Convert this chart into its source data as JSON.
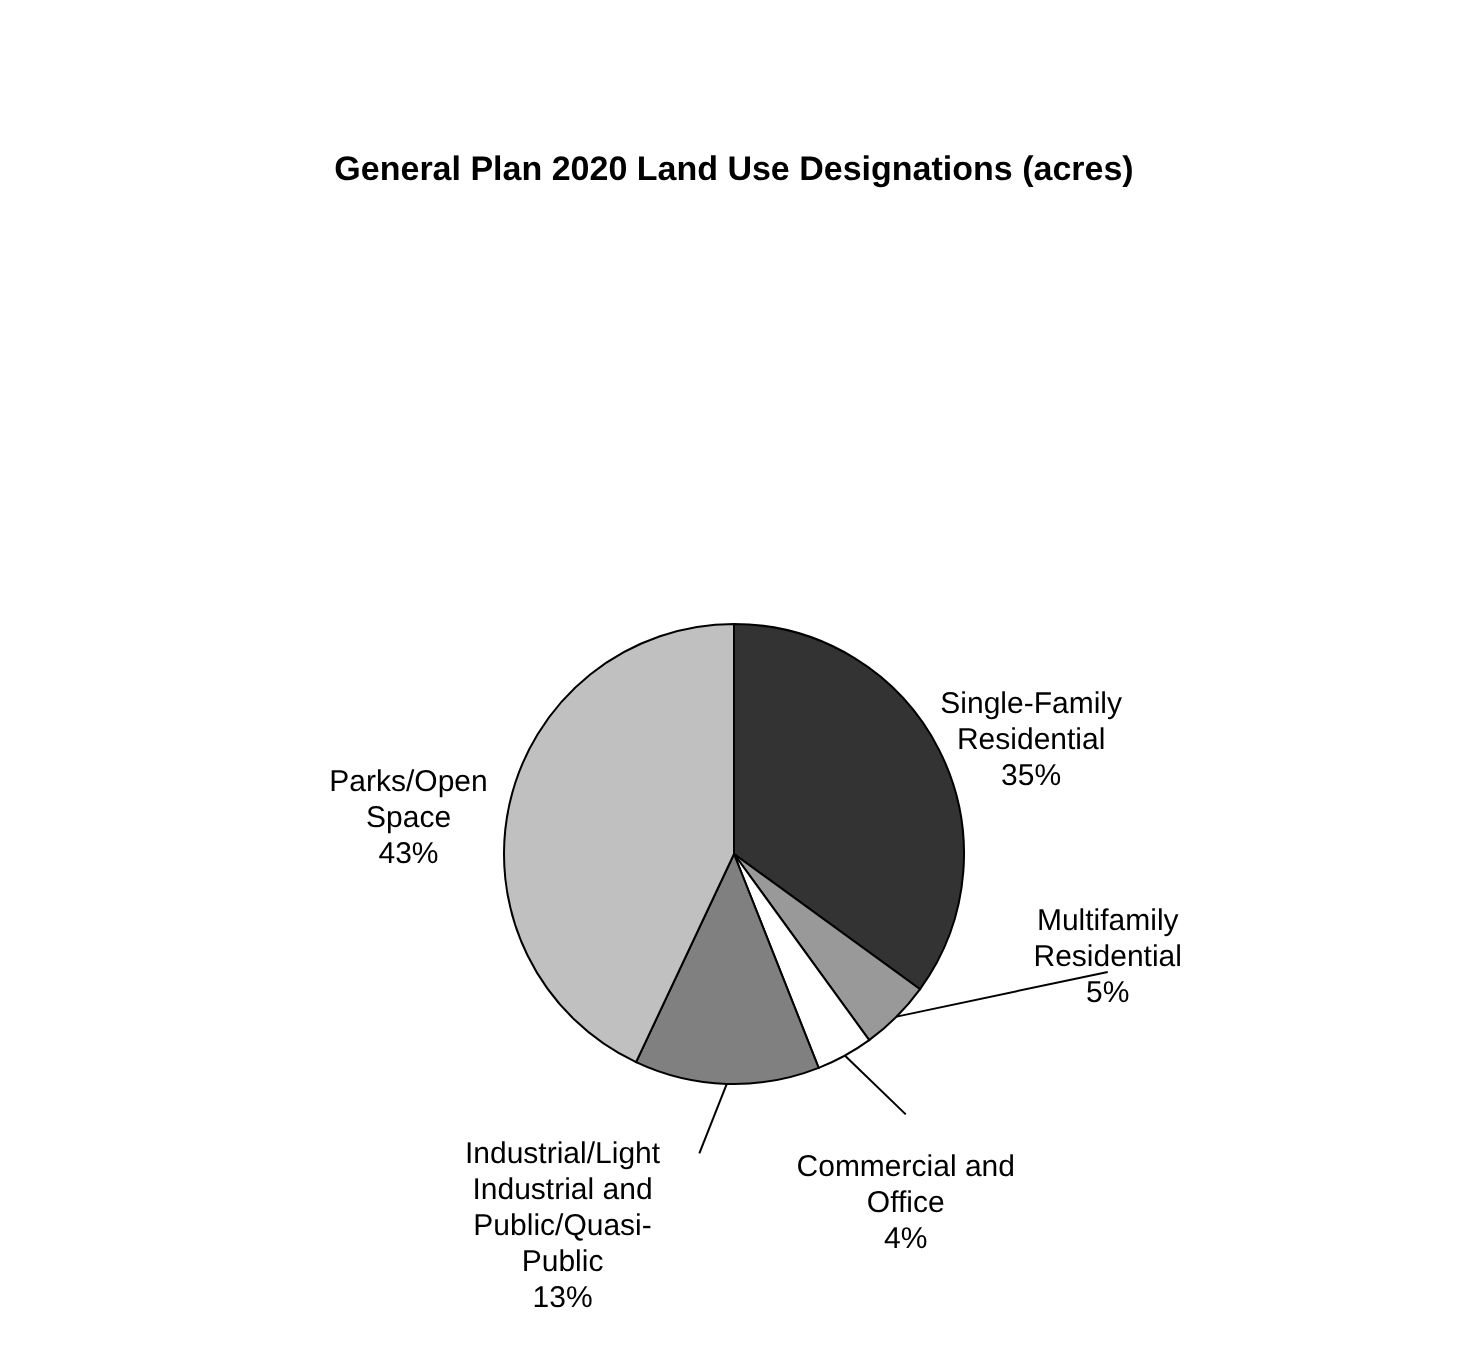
{
  "chart_data": {
    "type": "pie",
    "title": "General Plan 2020 Land Use Designations (acres)",
    "categories": [
      "Single-Family Residential",
      "Multifamily Residential",
      "Commercial and Office",
      "Industrial/Light Industrial and Public/Quasi-Public",
      "Parks/Open Space"
    ],
    "values": [
      35,
      5,
      4,
      13,
      43
    ],
    "value_labels": [
      "35%",
      "5%",
      "4%",
      "13%",
      "43%"
    ],
    "colors": [
      "#333333",
      "#999999",
      "#ffffff",
      "#808080",
      "#c0c0c0"
    ]
  }
}
